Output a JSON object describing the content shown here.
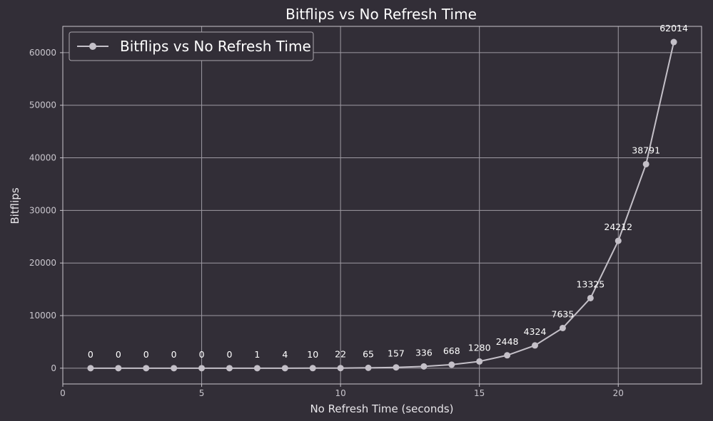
{
  "chart_data": {
    "type": "line",
    "title": "Bitflips vs No Refresh Time",
    "xlabel": "No Refresh Time (seconds)",
    "ylabel": "Bitflips",
    "xlim": [
      0,
      23
    ],
    "ylim": [
      -3000,
      65000
    ],
    "xticks": [
      0,
      5,
      10,
      15,
      20
    ],
    "yticks": [
      0,
      10000,
      20000,
      30000,
      40000,
      50000,
      60000
    ],
    "grid": true,
    "legend_position": "top-left",
    "colors": {
      "background": "#322e37",
      "grid": "#9e9aa3",
      "line": "#c4c0c8",
      "text": "#ffffff"
    },
    "series": [
      {
        "name": "Bitflips vs No Refresh Time",
        "x": [
          1,
          2,
          3,
          4,
          5,
          6,
          7,
          8,
          9,
          10,
          11,
          12,
          13,
          14,
          15,
          16,
          17,
          18,
          19,
          20,
          21,
          22
        ],
        "y": [
          0,
          0,
          0,
          0,
          0,
          0,
          1,
          4,
          10,
          22,
          65,
          157,
          336,
          668,
          1280,
          2448,
          4324,
          7635,
          13325,
          24212,
          38791,
          62014
        ]
      }
    ]
  }
}
